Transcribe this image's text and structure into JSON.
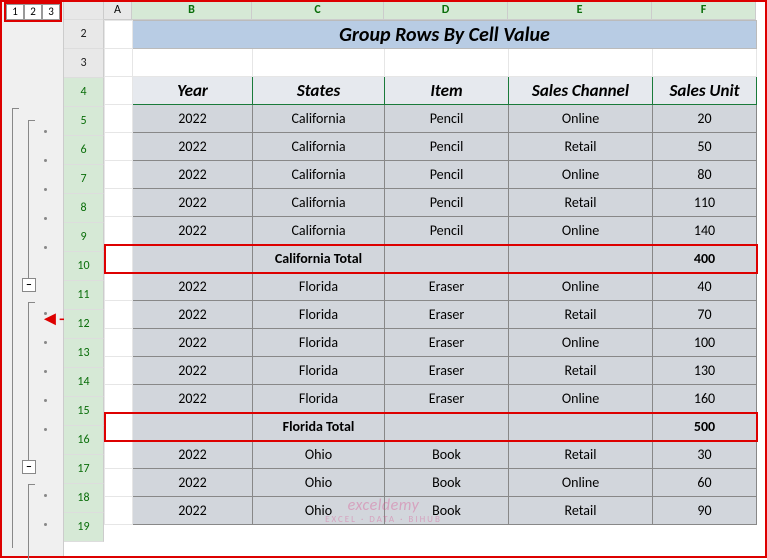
{
  "outline": {
    "levels": [
      "1",
      "2",
      "3"
    ],
    "collapse_symbol": "−"
  },
  "columns": [
    "A",
    "B",
    "C",
    "D",
    "E",
    "F"
  ],
  "row_numbers": [
    "",
    "2",
    "3",
    "4",
    "5",
    "6",
    "7",
    "8",
    "9",
    "10",
    "11",
    "12",
    "13",
    "14",
    "15",
    "16",
    "17",
    "18",
    "19"
  ],
  "title": "Group Rows By Cell Value",
  "headers": {
    "year": "Year",
    "states": "States",
    "item": "Item",
    "channel": "Sales Channel",
    "unit": "Sales Unit"
  },
  "data": [
    {
      "year": "2022",
      "state": "California",
      "item": "Pencil",
      "channel": "Online",
      "unit": "20"
    },
    {
      "year": "2022",
      "state": "California",
      "item": "Pencil",
      "channel": "Retail",
      "unit": "50"
    },
    {
      "year": "2022",
      "state": "California",
      "item": "Pencil",
      "channel": "Online",
      "unit": "80"
    },
    {
      "year": "2022",
      "state": "California",
      "item": "Pencil",
      "channel": "Retail",
      "unit": "110"
    },
    {
      "year": "2022",
      "state": "California",
      "item": "Pencil",
      "channel": "Online",
      "unit": "140"
    }
  ],
  "total1": {
    "label": "California Total",
    "unit": "400"
  },
  "data2": [
    {
      "year": "2022",
      "state": "Florida",
      "item": "Eraser",
      "channel": "Online",
      "unit": "40"
    },
    {
      "year": "2022",
      "state": "Florida",
      "item": "Eraser",
      "channel": "Retail",
      "unit": "70"
    },
    {
      "year": "2022",
      "state": "Florida",
      "item": "Eraser",
      "channel": "Online",
      "unit": "100"
    },
    {
      "year": "2022",
      "state": "Florida",
      "item": "Eraser",
      "channel": "Retail",
      "unit": "130"
    },
    {
      "year": "2022",
      "state": "Florida",
      "item": "Eraser",
      "channel": "Online",
      "unit": "160"
    }
  ],
  "total2": {
    "label": "Florida Total",
    "unit": "500"
  },
  "data3": [
    {
      "year": "2022",
      "state": "Ohio",
      "item": "Book",
      "channel": "Retail",
      "unit": "30"
    },
    {
      "year": "2022",
      "state": "Ohio",
      "item": "Book",
      "channel": "Online",
      "unit": "60"
    },
    {
      "year": "2022",
      "state": "Ohio",
      "item": "Book",
      "channel": "Retail",
      "unit": "90"
    }
  ],
  "watermark": {
    "main": "exceldemy",
    "sub": "EXCEL · DATA · BIHUB"
  },
  "colors": {
    "title_bg": "#b8cce4",
    "header_bg": "#e6e9ee",
    "data_bg": "#d2d6dc",
    "green_border": "#1a7a3a",
    "red": "#d00",
    "rownum_hl": "#d6e9d6"
  }
}
